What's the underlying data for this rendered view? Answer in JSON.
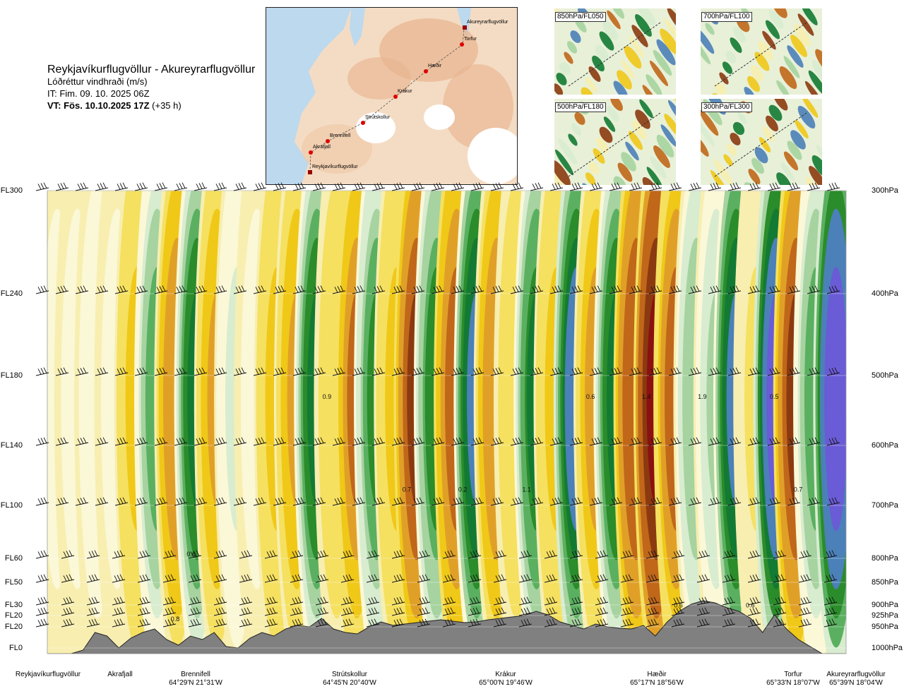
{
  "header": {
    "title": "Reykjavíkurflugvöllur - Akureyrarflugvöllur",
    "subtitle": "Lóðréttur vindhraði (m/s)",
    "issue_time": "IT: Fim. 09. 10. 2025 06Z",
    "valid_prefix": "VT: Fös. 10.10.2025 17Z",
    "valid_suffix": "(+35 h)"
  },
  "map": {
    "points": [
      {
        "name": "Akureyrarflugvöllur"
      },
      {
        "name": "Torfur"
      },
      {
        "name": "Hæðir"
      },
      {
        "name": "Krákur"
      },
      {
        "name": "Strútskollur"
      },
      {
        "name": "Brennifell"
      },
      {
        "name": "Akrafjall"
      },
      {
        "name": "Reykjavíkurflugvöllur"
      }
    ],
    "colors": {
      "land": "#f4dcc4",
      "high": "#e8b38e",
      "glacier": "#ffffff",
      "sea": "#bcd9ee",
      "route": "#555555",
      "point": "#dd0000"
    }
  },
  "thumbnails": [
    {
      "label": "850hPa/FL050"
    },
    {
      "label": "700hPa/FL100"
    },
    {
      "label": "500hPa/FL180"
    },
    {
      "label": "300hPa/FL300"
    }
  ],
  "chart_data": {
    "type": "heatmap",
    "title": "Lóðréttur vindhraði (m/s)",
    "levels": [
      {
        "fl": "FL300",
        "hpa": "300hPa"
      },
      {
        "fl": "FL240",
        "hpa": "400hPa"
      },
      {
        "fl": "FL180",
        "hpa": "500hPa"
      },
      {
        "fl": "FL140",
        "hpa": "600hPa"
      },
      {
        "fl": "FL100",
        "hpa": "700hPa"
      },
      {
        "fl": "FL60",
        "hpa": "800hPa"
      },
      {
        "fl": "FL50",
        "hpa": "850hPa"
      },
      {
        "fl": "FL30",
        "hpa": "900hPa"
      },
      {
        "fl": "FL20",
        "hpa": "925hPa"
      },
      {
        "fl": "FL20",
        "hpa": "950hPa"
      },
      {
        "fl": "FL0",
        "hpa": "1000hPa"
      }
    ],
    "locations": [
      {
        "name": "Reykjavíkurflugvöllur",
        "coord": ""
      },
      {
        "name": "Akrafjall",
        "coord": ""
      },
      {
        "name": "Brennifell",
        "coord": "64°29'N 21°31'W"
      },
      {
        "name": "Strútskollur",
        "coord": "64°45'N 20°40'W"
      },
      {
        "name": "Krákur",
        "coord": "65°00'N 19°46'W"
      },
      {
        "name": "Hæðir",
        "coord": "65°17'N 18°56'W"
      },
      {
        "name": "Torfur",
        "coord": "65°33'N 18°07'W"
      },
      {
        "name": "Akureyrarflugvöllur",
        "coord": "65°39'N 18°04'W"
      }
    ],
    "columns": [
      {
        "v": 0.1
      },
      {
        "v": 0.1
      },
      {
        "v": 0.15
      },
      {
        "v": 0.1
      },
      {
        "v": -0.3
      },
      {
        "v": 0.5
      },
      {
        "v": -0.6
      },
      {
        "v": 0.9
      },
      {
        "v": -0.4
      },
      {
        "v": 0.2
      },
      {
        "v": 0.1
      },
      {
        "v": -0.3
      },
      {
        "v": -0.4
      },
      {
        "v": 0.9
      },
      {
        "v": -0.2
      },
      {
        "v": -0.7
      },
      {
        "v": 0.6
      },
      {
        "v": -0.3
      },
      {
        "v": -1.1
      },
      {
        "v": 0.7
      },
      {
        "v": -0.9
      },
      {
        "v": 1.2
      },
      {
        "v": -0.6
      },
      {
        "v": -0.2
      },
      {
        "v": 0.8
      },
      {
        "v": -0.3
      },
      {
        "v": 1.3
      },
      {
        "v": -0.5
      },
      {
        "v": 0.9
      },
      {
        "v": -1.0
      },
      {
        "v": -1.6
      },
      {
        "v": -0.8
      },
      {
        "v": 0.4
      },
      {
        "v": 0.3
      },
      {
        "v": 1.2
      },
      {
        "v": -0.1
      },
      {
        "v": 1.5
      },
      {
        "v": -1.1
      },
      {
        "v": 0.5
      },
      {
        "v": 1.9
      }
    ],
    "contour_labels": [
      {
        "text": "0.9",
        "x": 0.35,
        "y": 0.55
      },
      {
        "text": "0.7",
        "x": 0.45,
        "y": 0.35
      },
      {
        "text": "0.2",
        "x": 0.52,
        "y": 0.35
      },
      {
        "text": "1.1",
        "x": 0.6,
        "y": 0.35
      },
      {
        "text": "0.6",
        "x": 0.68,
        "y": 0.55
      },
      {
        "text": "1.4",
        "x": 0.75,
        "y": 0.55
      },
      {
        "text": "1.9",
        "x": 0.82,
        "y": 0.55
      },
      {
        "text": "0.5",
        "x": 0.91,
        "y": 0.55
      },
      {
        "text": "0.7",
        "x": 0.94,
        "y": 0.35
      },
      {
        "text": "0.6",
        "x": 0.18,
        "y": 0.21
      },
      {
        "text": "0.8",
        "x": 0.16,
        "y": 0.07
      },
      {
        "text": "0.6",
        "x": 0.79,
        "y": 0.1
      },
      {
        "text": "0.6",
        "x": 0.88,
        "y": 0.1
      }
    ]
  }
}
